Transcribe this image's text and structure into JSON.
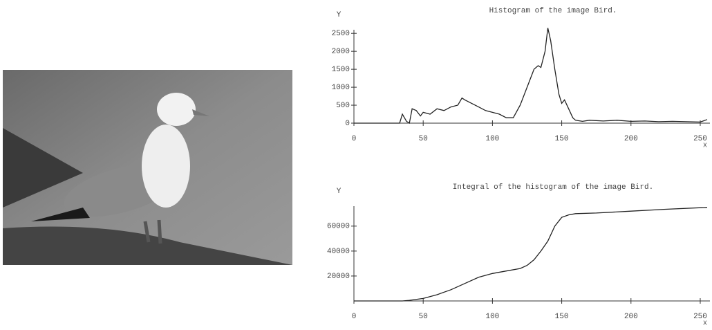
{
  "chart_data": [
    {
      "type": "line",
      "title": "Histogram of the image Bird.",
      "x_label": "X",
      "y_label": "Y",
      "color": "#222",
      "x": [
        0,
        30,
        33,
        35,
        38,
        40,
        42,
        45,
        48,
        50,
        55,
        60,
        65,
        70,
        75,
        78,
        80,
        85,
        90,
        95,
        100,
        105,
        110,
        115,
        120,
        125,
        128,
        130,
        133,
        135,
        138,
        140,
        142,
        145,
        148,
        150,
        152,
        155,
        158,
        160,
        165,
        170,
        180,
        190,
        200,
        210,
        220,
        230,
        240,
        250,
        255
      ],
      "values": [
        0,
        0,
        0,
        250,
        50,
        0,
        400,
        350,
        200,
        300,
        250,
        400,
        350,
        450,
        500,
        700,
        650,
        550,
        450,
        350,
        300,
        250,
        150,
        150,
        500,
        1000,
        1300,
        1500,
        1600,
        1550,
        2000,
        2650,
        2300,
        1500,
        800,
        550,
        650,
        400,
        150,
        80,
        50,
        80,
        60,
        80,
        50,
        60,
        40,
        50,
        40,
        30,
        100
      ],
      "xlim": [
        0,
        255
      ],
      "ylim": [
        0,
        2600
      ],
      "xticks": [
        0,
        50,
        100,
        150,
        200,
        250
      ],
      "yticks": [
        0,
        500,
        1000,
        1500,
        2000,
        2500
      ]
    },
    {
      "type": "line",
      "title": "Integral of the histogram of the image Bird.",
      "x_label": "X",
      "y_label": "Y",
      "color": "#222",
      "x": [
        0,
        35,
        40,
        50,
        60,
        70,
        80,
        90,
        100,
        110,
        120,
        125,
        130,
        135,
        140,
        145,
        150,
        155,
        160,
        175,
        200,
        225,
        255
      ],
      "values": [
        0,
        0,
        500,
        2000,
        5000,
        9000,
        14000,
        19000,
        22000,
        24000,
        26000,
        28500,
        33000,
        40000,
        48000,
        60000,
        67000,
        69000,
        70000,
        70500,
        72000,
        73500,
        75000
      ],
      "xlim": [
        0,
        255
      ],
      "ylim": [
        0,
        76000
      ],
      "xticks": [
        0,
        50,
        100,
        150,
        200,
        250
      ],
      "yticks": [
        20000,
        40000,
        60000
      ]
    }
  ]
}
